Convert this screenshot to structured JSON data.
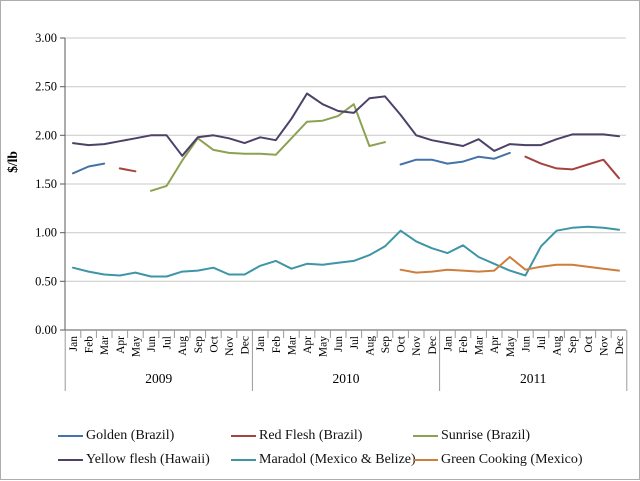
{
  "chart_data": {
    "type": "line",
    "title": "",
    "ylabel": "$/lb",
    "xlabel": "",
    "ylim": [
      0.0,
      3.0
    ],
    "yticks": [
      0.0,
      0.5,
      1.0,
      1.5,
      2.0,
      2.5,
      3.0
    ],
    "ytick_labels": [
      "0.00",
      "0.50",
      "1.00",
      "1.50",
      "2.00",
      "2.50",
      "3.00"
    ],
    "grid": "horizontal",
    "legend_position": "bottom",
    "months": [
      "Jan",
      "Feb",
      "Mar",
      "Apr",
      "May",
      "Jun",
      "Jul",
      "Aug",
      "Sep",
      "Oct",
      "Nov",
      "Dec"
    ],
    "years": [
      "2009",
      "2010",
      "2011"
    ],
    "series": [
      {
        "name": "Golden (Brazil)",
        "color": "#4572A7",
        "values": [
          1.61,
          1.68,
          1.71,
          null,
          null,
          null,
          null,
          null,
          null,
          null,
          null,
          null,
          null,
          null,
          null,
          null,
          null,
          null,
          null,
          null,
          null,
          1.7,
          1.75,
          1.75,
          1.71,
          1.73,
          1.78,
          1.76,
          1.82,
          null,
          null,
          null,
          null,
          null,
          null,
          null
        ]
      },
      {
        "name": "Red Flesh (Brazil)",
        "color": "#A5433F",
        "values": [
          null,
          null,
          null,
          1.66,
          1.63,
          null,
          null,
          null,
          null,
          null,
          null,
          null,
          null,
          null,
          null,
          null,
          null,
          null,
          null,
          null,
          null,
          null,
          null,
          null,
          null,
          null,
          null,
          null,
          null,
          1.78,
          1.71,
          1.66,
          1.65,
          1.7,
          1.75,
          1.56
        ]
      },
      {
        "name": "Sunrise (Brazil)",
        "color": "#8CA252",
        "values": [
          null,
          null,
          null,
          null,
          null,
          1.43,
          1.48,
          1.74,
          1.97,
          1.85,
          1.82,
          1.81,
          1.81,
          1.8,
          1.97,
          2.14,
          2.15,
          2.2,
          2.32,
          1.89,
          1.93,
          null,
          null,
          null,
          null,
          null,
          null,
          null,
          null,
          null,
          null,
          null,
          null,
          null,
          null,
          null
        ]
      },
      {
        "name": "Yellow flesh (Hawaii)",
        "color": "#4D4168",
        "values": [
          1.92,
          1.9,
          1.91,
          1.94,
          1.97,
          2.0,
          2.0,
          1.79,
          1.98,
          2.0,
          1.97,
          1.92,
          1.98,
          1.95,
          2.17,
          2.43,
          2.32,
          2.25,
          2.23,
          2.38,
          2.4,
          2.21,
          2.0,
          1.95,
          1.92,
          1.89,
          1.96,
          1.84,
          1.91,
          1.9,
          1.9,
          1.96,
          2.01,
          2.01,
          2.01,
          1.99
        ]
      },
      {
        "name": "Maradol (Mexico & Belize)",
        "color": "#3E95A8",
        "values": [
          0.64,
          0.6,
          0.57,
          0.56,
          0.59,
          0.55,
          0.55,
          0.6,
          0.61,
          0.64,
          0.57,
          0.57,
          0.66,
          0.71,
          0.63,
          0.68,
          0.67,
          0.69,
          0.71,
          0.77,
          0.86,
          1.02,
          0.91,
          0.84,
          0.79,
          0.87,
          0.75,
          0.68,
          0.61,
          0.56,
          0.86,
          1.02,
          1.05,
          1.06,
          1.05,
          1.03
        ]
      },
      {
        "name": "Green Cooking (Mexico)",
        "color": "#CD7E3C",
        "values": [
          null,
          null,
          null,
          null,
          null,
          null,
          null,
          null,
          null,
          null,
          null,
          null,
          null,
          null,
          null,
          null,
          null,
          null,
          null,
          null,
          null,
          0.62,
          0.59,
          0.6,
          0.62,
          0.61,
          0.6,
          0.61,
          0.75,
          0.62,
          0.65,
          0.67,
          0.67,
          0.65,
          0.63,
          0.61
        ]
      }
    ]
  }
}
